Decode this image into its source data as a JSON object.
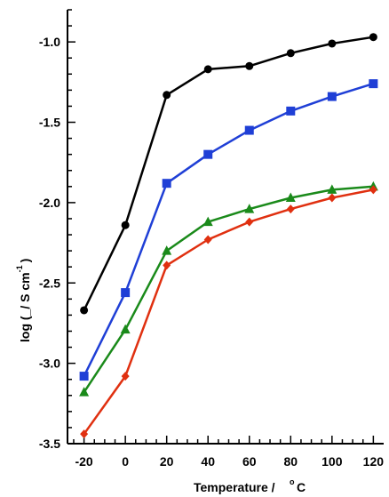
{
  "chart_data": {
    "type": "line",
    "xlabel": "Temperature  /  ",
    "xlabel_degree": "o",
    "xlabel_unit": "C",
    "ylabel": "log (_/ S cm",
    "ylabel_sup": "-1",
    "ylabel_end": ")",
    "xlim": [
      -28,
      125
    ],
    "ylim": [
      -3.5,
      -0.8
    ],
    "x_ticks": [
      -20,
      0,
      20,
      40,
      60,
      80,
      100,
      120
    ],
    "x_tick_labels": [
      "-20",
      "0",
      "20",
      "40",
      "60",
      "80",
      "100",
      "120"
    ],
    "y_ticks": [
      -1.0,
      -1.5,
      -2.0,
      -2.5,
      -3.0,
      -3.5
    ],
    "y_tick_labels": [
      "-1.0",
      "-1.5",
      "-2.0",
      "-2.5",
      "-3.0",
      "-3.5"
    ],
    "grid": false,
    "x": [
      -20,
      0,
      20,
      40,
      60,
      80,
      100,
      120
    ],
    "series": [
      {
        "color": "#000000",
        "marker": "circle",
        "values": [
          -2.67,
          -2.14,
          -1.33,
          -1.17,
          -1.15,
          -1.07,
          -1.01,
          -0.97
        ]
      },
      {
        "color": "#1f3fd6",
        "marker": "square",
        "values": [
          -3.08,
          -2.56,
          -1.88,
          -1.7,
          -1.55,
          -1.43,
          -1.34,
          -1.26
        ]
      },
      {
        "color": "#1a8a1a",
        "marker": "triangle",
        "values": [
          -3.18,
          -2.79,
          -2.3,
          -2.12,
          -2.04,
          -1.97,
          -1.92,
          -1.9
        ]
      },
      {
        "color": "#e03010",
        "marker": "diamond",
        "values": [
          -3.44,
          -3.08,
          -2.39,
          -2.23,
          -2.12,
          -2.04,
          -1.97,
          -1.92
        ]
      }
    ]
  }
}
